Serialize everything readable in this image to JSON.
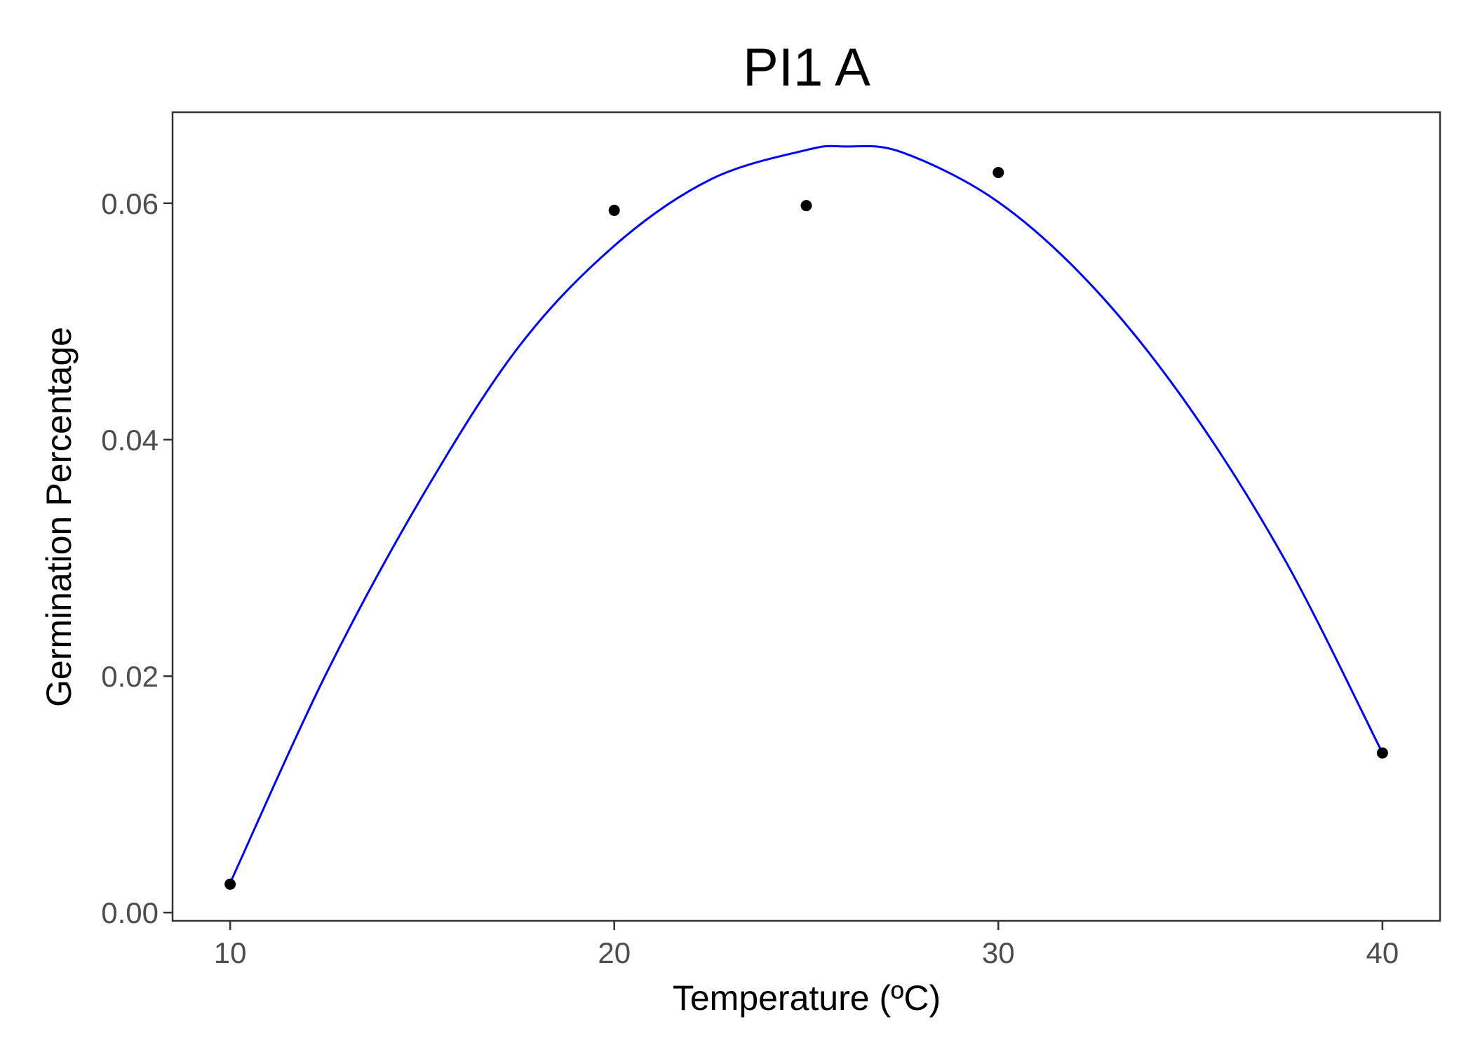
{
  "chart_data": {
    "type": "scatter",
    "title": "PI1 A",
    "xlabel": "Temperature (ºC)",
    "ylabel": "Germination Percentage",
    "xlim": [
      8.5,
      41.5
    ],
    "ylim": [
      -0.0007,
      0.0677
    ],
    "x_ticks": [
      10,
      20,
      30,
      40
    ],
    "y_ticks": [
      0.0,
      0.02,
      0.04,
      0.06
    ],
    "x_tick_labels": [
      "10",
      "20",
      "30",
      "40"
    ],
    "y_tick_labels": [
      "0.00",
      "0.02",
      "0.04",
      "0.06"
    ],
    "grid": false,
    "legend": "none",
    "point_color": "#000000",
    "line_color": "#0000ff",
    "points": [
      {
        "x": 10,
        "y": 0.0024
      },
      {
        "x": 20,
        "y": 0.0594
      },
      {
        "x": 25,
        "y": 0.0598
      },
      {
        "x": 30,
        "y": 0.0626
      },
      {
        "x": 40,
        "y": 0.0135
      }
    ],
    "fit_curve": {
      "type": "smooth",
      "x": [
        10,
        12.5,
        15,
        17.5,
        20,
        22.5,
        25,
        26,
        27.5,
        30,
        32.5,
        35,
        37.5,
        40
      ],
      "y": [
        0.0025,
        0.0202,
        0.0352,
        0.0478,
        0.0564,
        0.062,
        0.0645,
        0.0648,
        0.0643,
        0.0601,
        0.0528,
        0.0426,
        0.0296,
        0.0135
      ]
    }
  }
}
